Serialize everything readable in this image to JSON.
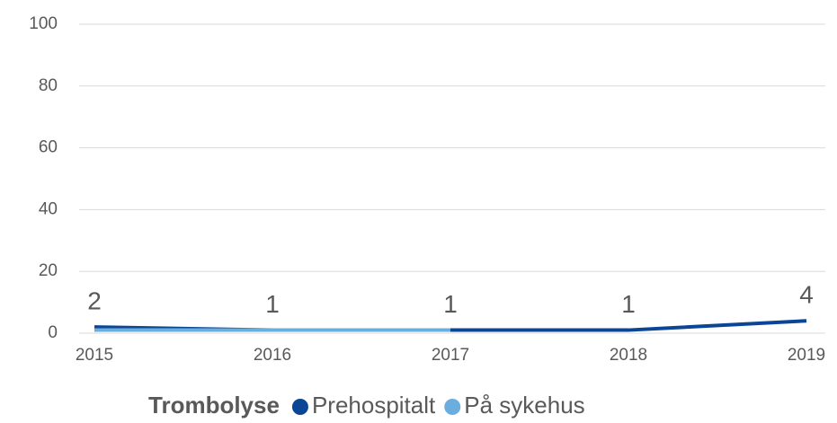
{
  "chart_data": {
    "type": "line",
    "categories": [
      "2015",
      "2016",
      "2017",
      "2018",
      "2019"
    ],
    "legend_title": "Trombolyse",
    "series": [
      {
        "name": "Prehospitalt",
        "color": "#0b4595",
        "values": [
          2,
          1,
          1,
          1,
          4
        ]
      },
      {
        "name": "På sykehus",
        "color": "#6aaee0",
        "values": [
          1,
          1,
          1,
          null,
          null
        ]
      }
    ],
    "ylim": [
      0,
      100
    ],
    "yticks": [
      0,
      20,
      40,
      60,
      80,
      100
    ],
    "grid": true,
    "legend": "bottom"
  }
}
